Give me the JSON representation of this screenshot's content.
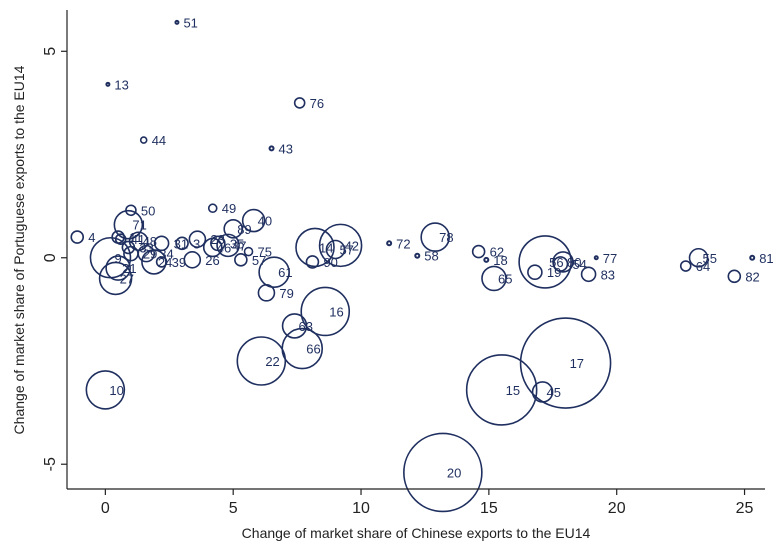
{
  "chart_data": {
    "type": "scatter",
    "subtype": "bubble",
    "xlabel": "Change of market share of Chinese exports to the EU14",
    "ylabel": "Change of market share of Portuguese exports to the EU14",
    "xlim": [
      -1.5,
      25.8
    ],
    "ylim": [
      -5.6,
      6.0
    ],
    "xticks": [
      0,
      5,
      10,
      15,
      20,
      25
    ],
    "yticks": [
      -5,
      0,
      5
    ],
    "grid": false,
    "colors": {
      "marker": "#1f2f5f",
      "text": "#222222",
      "axis": "#222222"
    },
    "points": [
      {
        "label": "51",
        "x": 2.8,
        "y": 5.7,
        "size": 1
      },
      {
        "label": "13",
        "x": 0.1,
        "y": 4.2,
        "size": 1
      },
      {
        "label": "76",
        "x": 7.6,
        "y": 3.75,
        "size": 5
      },
      {
        "label": "44",
        "x": 1.5,
        "y": 2.85,
        "size": 3
      },
      {
        "label": "43",
        "x": 6.5,
        "y": 2.65,
        "size": 2
      },
      {
        "label": "50",
        "x": 1.0,
        "y": 1.15,
        "size": 5
      },
      {
        "label": "49",
        "x": 4.2,
        "y": 1.2,
        "size": 4
      },
      {
        "label": "40",
        "x": 5.8,
        "y": 0.9,
        "size": 11
      },
      {
        "label": "71",
        "x": 0.9,
        "y": 0.8,
        "size": 14
      },
      {
        "label": "89",
        "x": 5.0,
        "y": 0.7,
        "size": 9
      },
      {
        "label": "78",
        "x": 12.9,
        "y": 0.5,
        "size": 14
      },
      {
        "label": "4",
        "x": -1.1,
        "y": 0.5,
        "size": 6
      },
      {
        "label": "72",
        "x": 11.1,
        "y": 0.35,
        "size": 2
      },
      {
        "label": "42",
        "x": 9.2,
        "y": 0.3,
        "size": 21
      },
      {
        "label": "14",
        "x": 8.2,
        "y": 0.25,
        "size": 19
      },
      {
        "label": "57",
        "x": 9.0,
        "y": 0.2,
        "size": 9
      },
      {
        "label": "62",
        "x": 14.6,
        "y": 0.15,
        "size": 6
      },
      {
        "label": "58",
        "x": 12.2,
        "y": 0.05,
        "size": 2
      },
      {
        "label": "18",
        "x": 14.9,
        "y": -0.05,
        "size": 2
      },
      {
        "label": "75",
        "x": 5.6,
        "y": 0.15,
        "size": 4
      },
      {
        "label": "47",
        "x": 4.8,
        "y": 0.3,
        "size": 11
      },
      {
        "label": "57",
        "x": 5.3,
        "y": -0.05,
        "size": 6
      },
      {
        "label": "90",
        "x": 8.1,
        "y": -0.1,
        "size": 6
      },
      {
        "label": "55",
        "x": 23.2,
        "y": 0.0,
        "size": 9
      },
      {
        "label": "81",
        "x": 25.3,
        "y": 0.0,
        "size": 2
      },
      {
        "label": "64",
        "x": 22.7,
        "y": -0.2,
        "size": 5
      },
      {
        "label": "82",
        "x": 24.6,
        "y": -0.45,
        "size": 6
      },
      {
        "label": "77",
        "x": 19.2,
        "y": 0.0,
        "size": 1
      },
      {
        "label": "80",
        "x": 17.9,
        "y": -0.1,
        "size": 10
      },
      {
        "label": "54",
        "x": 17.8,
        "y": -0.15,
        "size": 7
      },
      {
        "label": "56",
        "x": 17.2,
        "y": -0.1,
        "size": 26
      },
      {
        "label": "19",
        "x": 16.8,
        "y": -0.35,
        "size": 7
      },
      {
        "label": "83",
        "x": 18.9,
        "y": -0.4,
        "size": 7
      },
      {
        "label": "65",
        "x": 15.2,
        "y": -0.5,
        "size": 12
      },
      {
        "label": "61",
        "x": 6.6,
        "y": -0.35,
        "size": 15
      },
      {
        "label": "79",
        "x": 6.3,
        "y": -0.85,
        "size": 8
      },
      {
        "label": "63",
        "x": 7.4,
        "y": -1.65,
        "size": 12
      },
      {
        "label": "16",
        "x": 8.6,
        "y": -1.3,
        "size": 24
      },
      {
        "label": "66",
        "x": 7.7,
        "y": -2.2,
        "size": 20
      },
      {
        "label": "22",
        "x": 6.1,
        "y": -2.5,
        "size": 24
      },
      {
        "label": "17",
        "x": 18.0,
        "y": -2.55,
        "size": 45
      },
      {
        "label": "15",
        "x": 15.5,
        "y": -3.2,
        "size": 35
      },
      {
        "label": "45",
        "x": 17.1,
        "y": -3.25,
        "size": 10
      },
      {
        "label": "20",
        "x": 13.2,
        "y": -5.2,
        "size": 39
      },
      {
        "label": "10",
        "x": 0.0,
        "y": -3.2,
        "size": 19
      },
      {
        "label": "9",
        "x": 0.2,
        "y": 0.0,
        "size": 20
      },
      {
        "label": "27",
        "x": 0.4,
        "y": -0.5,
        "size": 16
      },
      {
        "label": "21",
        "x": 0.5,
        "y": -0.25,
        "size": 12
      },
      {
        "label": "31",
        "x": 2.2,
        "y": 0.35,
        "size": 7
      },
      {
        "label": "39",
        "x": 2.2,
        "y": -0.1,
        "size": 5
      },
      {
        "label": "26",
        "x": 3.4,
        "y": -0.05,
        "size": 8
      },
      {
        "label": "35",
        "x": 4.4,
        "y": 0.35,
        "size": 7
      },
      {
        "label": "3",
        "x": 3.0,
        "y": 0.35,
        "size": 6
      },
      {
        "label": "24",
        "x": 1.9,
        "y": -0.1,
        "size": 12
      },
      {
        "label": "48",
        "x": 1.3,
        "y": 0.4,
        "size": 9
      },
      {
        "label": "11",
        "x": 0.5,
        "y": 0.5,
        "size": 6
      },
      {
        "label": "29",
        "x": 1.0,
        "y": 0.1,
        "size": 7
      },
      {
        "label": "33",
        "x": 0.9,
        "y": 0.25,
        "size": 6
      },
      {
        "label": "41",
        "x": 0.6,
        "y": 0.45,
        "size": 5
      },
      {
        "label": "34",
        "x": 1.6,
        "y": 0.1,
        "size": 8
      },
      {
        "label": "23",
        "x": 3.6,
        "y": 0.45,
        "size": 8
      },
      {
        "label": "46",
        "x": 4.2,
        "y": 0.25,
        "size": 9
      }
    ]
  }
}
